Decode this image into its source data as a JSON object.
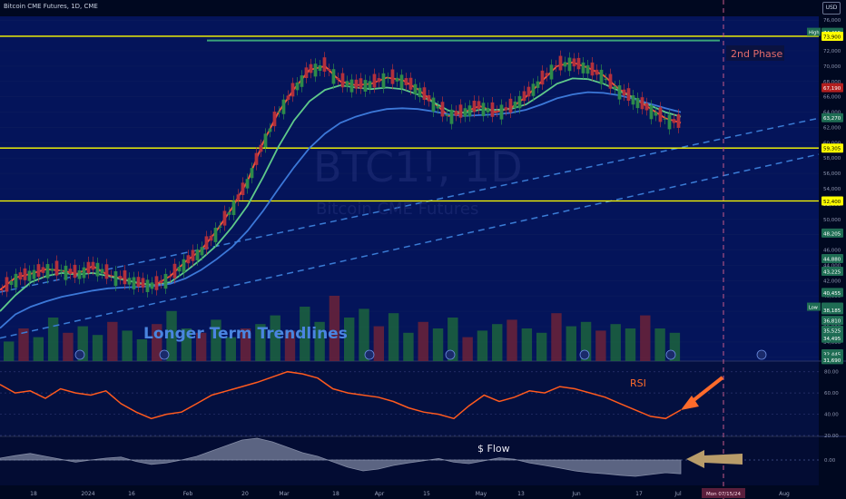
{
  "header": {
    "title": "Bitcoin CME Futures, 1D, CME",
    "currency": "USD"
  },
  "watermark": {
    "symbol": "BTC1!, 1D",
    "description": "Bitcoin CME Futures"
  },
  "annotations": {
    "phase": "2nd Phase",
    "trendlines": "Longer Term Trendlines",
    "rsi": "RSI",
    "flow": "$ Flow"
  },
  "badges": {
    "high_label": "High",
    "high_value": "74,415",
    "low_label": "Low",
    "low_value": "38,540"
  },
  "chart_data": {
    "type": "candlestick",
    "title": "Bitcoin CME Futures, 1D, CME",
    "y_axis": {
      "ticks": [
        "76,000",
        "72,000",
        "70,000",
        "68,000",
        "66,000",
        "64,000",
        "62,000",
        "60,000",
        "58,000",
        "56,000",
        "54,000",
        "52,000",
        "50,000",
        "48,000",
        "46,000",
        "44,000",
        "42,000",
        "40,000",
        "38,000",
        "36,000",
        "34,000",
        "32,000"
      ],
      "range": [
        31500,
        76500
      ]
    },
    "x_axis": {
      "ticks": [
        "18",
        "2024",
        "16",
        "Feb",
        "20",
        "Mar",
        "18",
        "Apr",
        "15",
        "May",
        "13",
        "Jun",
        "17",
        "Jul",
        "Aug"
      ],
      "highlight": "Mon 07/15/24"
    },
    "horizontal_levels": [
      {
        "value": 73900,
        "label": "73,900",
        "color": "#ffff00"
      },
      {
        "value": 59305,
        "label": "59,305",
        "color": "#ffff00"
      },
      {
        "value": 52400,
        "label": "52,400",
        "color": "#ffff00"
      }
    ],
    "price_badges": [
      {
        "value": 74415,
        "label": "74,415",
        "color": "#1f6d54"
      },
      {
        "value": 67190,
        "label": "67,190",
        "color": "#b21f1f"
      },
      {
        "value": 63270,
        "label": "63,270",
        "color": "#1f6d54"
      },
      {
        "value": 48205,
        "label": "48,205",
        "color": "#1f6d54"
      },
      {
        "value": 44880,
        "label": "44,880",
        "color": "#1f6d54"
      },
      {
        "value": 43225,
        "label": "43,225",
        "color": "#1f6d54"
      },
      {
        "value": 40455,
        "label": "40,455",
        "color": "#1f6d54"
      },
      {
        "value": 38540,
        "label": "38,540",
        "color": "#1f6d54"
      },
      {
        "value": 38185,
        "label": "38,185",
        "color": "#1f6d54"
      },
      {
        "value": 36810,
        "label": "36,810",
        "color": "#1f6d54"
      },
      {
        "value": 35525,
        "label": "35,525",
        "color": "#1f6d54"
      },
      {
        "value": 34495,
        "label": "34,495",
        "color": "#1f6d54"
      },
      {
        "value": 32445,
        "label": "32,445",
        "color": "#1f6d54"
      },
      {
        "value": 31690,
        "label": "31,690",
        "color": "#1f6d54"
      }
    ],
    "moving_averages": [
      {
        "color": "#ff5a3c",
        "values": [
          40800,
          42400,
          42900,
          43500,
          43300,
          42900,
          43900,
          42700,
          42200,
          41600,
          41400,
          42600,
          44500,
          46000,
          48500,
          51500,
          55000,
          60000,
          64000,
          67000,
          69500,
          70000,
          68000,
          67500,
          67700,
          68500,
          68200,
          67000,
          65300,
          63500,
          64000,
          64800,
          64000,
          64500,
          66000,
          68000,
          70000,
          70500,
          69800,
          68800,
          67000,
          65800,
          64500,
          63200,
          62600
        ]
      },
      {
        "color": "#5fc98a",
        "values": [
          38000,
          40100,
          41800,
          42600,
          43000,
          42800,
          43000,
          42600,
          42100,
          41700,
          41400,
          41800,
          43200,
          44800,
          46600,
          49000,
          51800,
          55500,
          59500,
          62900,
          65400,
          66900,
          67500,
          67200,
          67000,
          67200,
          67000,
          66300,
          65300,
          64200,
          63900,
          64300,
          64300,
          64400,
          65000,
          66300,
          67700,
          68400,
          68300,
          67700,
          66800,
          65800,
          64900,
          64000,
          63400
        ]
      },
      {
        "color": "#3c78d8",
        "values": [
          35800,
          37600,
          38600,
          39300,
          39900,
          40300,
          40700,
          41000,
          41100,
          41200,
          41300,
          41600,
          42300,
          43400,
          44800,
          46400,
          48500,
          51100,
          54000,
          56800,
          59300,
          61200,
          62600,
          63400,
          64000,
          64400,
          64500,
          64400,
          64100,
          63700,
          63500,
          63600,
          63700,
          63900,
          64300,
          65000,
          65800,
          66300,
          66600,
          66500,
          66200,
          65700,
          65100,
          64500,
          64000
        ]
      }
    ],
    "trendlines": [
      {
        "from_price": 34500,
        "to_price": 58500
      },
      {
        "from_price": 40500,
        "to_price": 63200
      }
    ],
    "rsi": {
      "ticks": [
        "80.00",
        "60.00",
        "40.00",
        "20.00"
      ],
      "values": [
        68,
        60,
        62,
        55,
        64,
        60,
        58,
        62,
        50,
        42,
        36,
        40,
        42,
        50,
        58,
        62,
        66,
        70,
        75,
        80,
        78,
        74,
        64,
        60,
        58,
        56,
        52,
        46,
        42,
        40,
        36,
        48,
        58,
        52,
        56,
        62,
        60,
        66,
        64,
        60,
        56,
        50,
        44,
        38,
        36,
        44
      ]
    },
    "flow": {
      "ticks": [
        "0.00"
      ],
      "values": [
        0.05,
        0.12,
        0.18,
        0.1,
        0.02,
        -0.06,
        0.0,
        0.05,
        0.08,
        -0.04,
        -0.12,
        -0.08,
        0.0,
        0.1,
        0.25,
        0.4,
        0.55,
        0.6,
        0.5,
        0.35,
        0.2,
        0.1,
        -0.05,
        -0.2,
        -0.3,
        -0.25,
        -0.15,
        -0.08,
        -0.02,
        0.04,
        -0.06,
        -0.1,
        -0.02,
        0.06,
        0.02,
        -0.08,
        -0.15,
        -0.22,
        -0.3,
        -0.35,
        -0.38,
        -0.42,
        -0.45,
        -0.4,
        -0.35,
        -0.38
      ]
    },
    "volume": {
      "values": [
        18,
        30,
        22,
        40,
        26,
        32,
        24,
        36,
        28,
        20,
        34,
        46,
        30,
        26,
        38,
        22,
        30,
        34,
        42,
        28,
        50,
        36,
        60,
        40,
        48,
        32,
        44,
        26,
        36,
        30,
        40,
        22,
        28,
        34,
        38,
        30,
        26,
        44,
        32,
        36,
        28,
        34,
        30,
        42,
        30,
        26
      ]
    }
  }
}
